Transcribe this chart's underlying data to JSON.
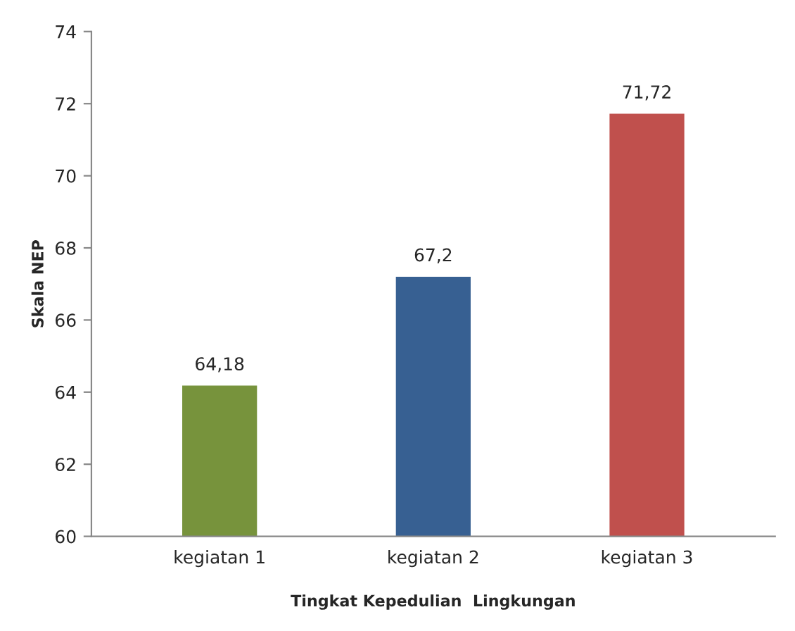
{
  "chart_data": {
    "type": "bar",
    "xlabel": "Tingkat Kepedulian  Lingkungan",
    "ylabel": "Skala NEP",
    "categories": [
      "kegiatan 1",
      "kegiatan 2",
      "kegiatan 3"
    ],
    "values": [
      64.18,
      67.2,
      71.72
    ],
    "colors": [
      "#77933c",
      "#376092",
      "#c0504d"
    ],
    "value_labels": [
      "64,18",
      "67,2",
      "71,72"
    ],
    "ylim": [
      60,
      74
    ],
    "yticks": [
      60,
      62,
      64,
      66,
      68,
      70,
      72,
      74
    ],
    "grid": false,
    "legend": false
  }
}
